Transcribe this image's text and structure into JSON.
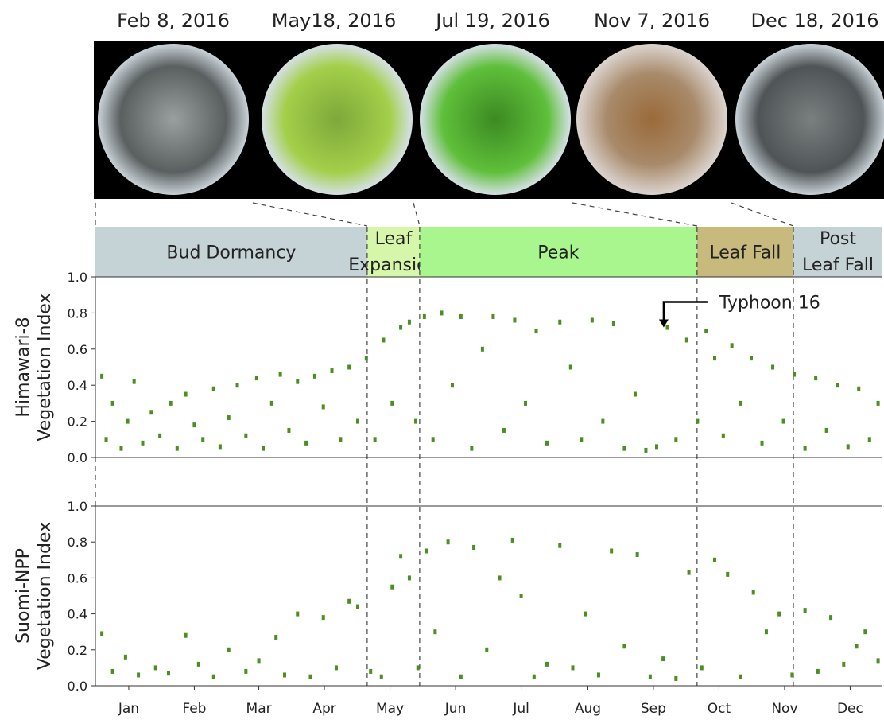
{
  "photos": [
    "Feb 8, 2016",
    "May18, 2016",
    "Jul 19, 2016",
    "Nov 7, 2016",
    "Dec 18, 2016"
  ],
  "phases": [
    {
      "label": [
        "Bud Dormancy"
      ],
      "start": 0,
      "end": 126.4,
      "color": "#c6d3d6"
    },
    {
      "label": [
        "Leaf",
        "Expansion"
      ],
      "start": 126.4,
      "end": 150.8,
      "color": "#d6f7aa"
    },
    {
      "label": [
        "Peak"
      ],
      "start": 150.8,
      "end": 279.8,
      "color": "#a9f58e"
    },
    {
      "label": [
        "Leaf Fall"
      ],
      "start": 279.8,
      "end": 324.6,
      "color": "#c8ba7c"
    },
    {
      "label": [
        "Post",
        "Leaf Fall"
      ],
      "start": 324.6,
      "end": 366,
      "color": "#c6d3d6"
    }
  ],
  "chart_data": [
    {
      "type": "scatter",
      "ylabel": [
        "Himawari-8",
        "Vegetation Index"
      ],
      "annotation": {
        "text": "Typhoon 16",
        "x": 264.3,
        "y": 0.72
      },
      "color": "#4a8f1f",
      "xlim": [
        0,
        366
      ],
      "ylim": [
        0,
        1
      ],
      "yticks": [
        {
          "value": 0,
          "label": "0.0"
        },
        0.2,
        0.4,
        0.6,
        0.8,
        {
          "value": 1,
          "label": "1.0"
        }
      ],
      "x": [
        3,
        5,
        8,
        12,
        15,
        18,
        22,
        26,
        30,
        35,
        38,
        42,
        46,
        50,
        55,
        58,
        62,
        66,
        70,
        75,
        78,
        82,
        86,
        90,
        94,
        98,
        102,
        106,
        110,
        114,
        118,
        122,
        126,
        130,
        134,
        138,
        142,
        146,
        149,
        153,
        157,
        161,
        166,
        170,
        175,
        180,
        185,
        190,
        195,
        200,
        205,
        210,
        216,
        221,
        226,
        231,
        236,
        241,
        246,
        251,
        256,
        261,
        266,
        270,
        275,
        280,
        284,
        288,
        292,
        296,
        300,
        305,
        310,
        315,
        320,
        325,
        330,
        335,
        340,
        345,
        350,
        355,
        360,
        364
      ],
      "values": [
        0.45,
        0.1,
        0.3,
        0.05,
        0.2,
        0.42,
        0.08,
        0.25,
        0.12,
        0.3,
        0.05,
        0.35,
        0.18,
        0.1,
        0.38,
        0.06,
        0.22,
        0.4,
        0.12,
        0.44,
        0.05,
        0.3,
        0.46,
        0.15,
        0.42,
        0.08,
        0.45,
        0.28,
        0.48,
        0.1,
        0.5,
        0.2,
        0.55,
        0.1,
        0.65,
        0.3,
        0.72,
        0.75,
        0.2,
        0.78,
        0.1,
        0.8,
        0.4,
        0.78,
        0.05,
        0.6,
        0.78,
        0.15,
        0.76,
        0.3,
        0.7,
        0.08,
        0.75,
        0.5,
        0.1,
        0.76,
        0.2,
        0.74,
        0.05,
        0.35,
        0.04,
        0.06,
        0.72,
        0.1,
        0.65,
        0.2,
        0.7,
        0.55,
        0.12,
        0.62,
        0.3,
        0.55,
        0.08,
        0.5,
        0.2,
        0.46,
        0.05,
        0.44,
        0.15,
        0.4,
        0.06,
        0.38,
        0.1,
        0.3
      ]
    },
    {
      "type": "scatter",
      "ylabel": [
        "Suomi-NPP",
        "Vegetation Index"
      ],
      "color": "#4a8f1f",
      "xlim": [
        0,
        366
      ],
      "ylim": [
        0,
        1
      ],
      "yticks": [
        {
          "value": 0,
          "label": "0.0"
        },
        0.2,
        0.4,
        0.6,
        0.8,
        {
          "value": 1,
          "label": "1.0"
        }
      ],
      "xticks": [
        {
          "value": 15.5,
          "label": "Jan"
        },
        {
          "value": 46,
          "label": "Feb"
        },
        {
          "value": 76,
          "label": "Mar"
        },
        {
          "value": 106.5,
          "label": "Apr"
        },
        {
          "value": 137,
          "label": "May"
        },
        {
          "value": 167.5,
          "label": "Jun"
        },
        {
          "value": 198,
          "label": "Jul"
        },
        {
          "value": 229,
          "label": "Aug"
        },
        {
          "value": 259.5,
          "label": "Sep"
        },
        {
          "value": 290,
          "label": "Oct"
        },
        {
          "value": 320.5,
          "label": "Nov"
        },
        {
          "value": 351,
          "label": "Dec"
        }
      ],
      "x": [
        3,
        8,
        14,
        20,
        28,
        34,
        42,
        48,
        55,
        62,
        70,
        76,
        84,
        88,
        94,
        100,
        106,
        112,
        118,
        122,
        128,
        133,
        138,
        142,
        146,
        150,
        154,
        158,
        164,
        170,
        176,
        182,
        188,
        194,
        198,
        204,
        210,
        216,
        222,
        228,
        234,
        240,
        246,
        252,
        258,
        264,
        270,
        276,
        282,
        288,
        294,
        300,
        306,
        312,
        318,
        324,
        330,
        336,
        342,
        348,
        354,
        358,
        364
      ],
      "values": [
        0.29,
        0.08,
        0.16,
        0.06,
        0.1,
        0.07,
        0.28,
        0.12,
        0.05,
        0.2,
        0.08,
        0.14,
        0.27,
        0.06,
        0.4,
        0.05,
        0.38,
        0.1,
        0.47,
        0.44,
        0.08,
        0.05,
        0.55,
        0.72,
        0.6,
        0.1,
        0.75,
        0.3,
        0.8,
        0.05,
        0.77,
        0.2,
        0.6,
        0.81,
        0.5,
        0.05,
        0.12,
        0.78,
        0.1,
        0.4,
        0.06,
        0.75,
        0.22,
        0.73,
        0.05,
        0.15,
        0.04,
        0.63,
        0.1,
        0.7,
        0.62,
        0.05,
        0.52,
        0.3,
        0.4,
        0.06,
        0.42,
        0.08,
        0.38,
        0.12,
        0.22,
        0.3,
        0.14
      ]
    }
  ]
}
